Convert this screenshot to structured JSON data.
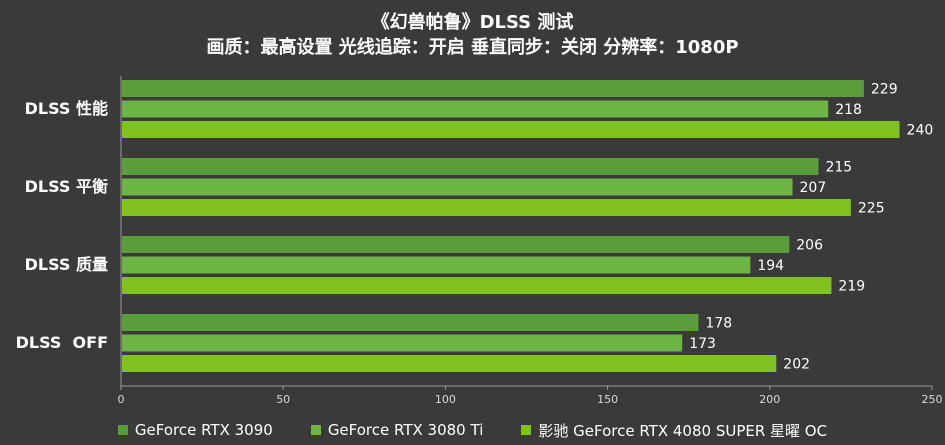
{
  "chart_data": {
    "type": "bar",
    "orientation": "horizontal",
    "title": "《幻兽帕鲁》DLSS 测试",
    "subtitle": "画质：最高设置 光线追踪：开启 垂直同步：关闭 分辨率：1080P",
    "categories": [
      "DLSS 性能",
      "DLSS 平衡",
      "DLSS 质量",
      "DLSS  OFF"
    ],
    "series": [
      {
        "name": "GeForce RTX 3090",
        "values": [
          229,
          215,
          206,
          178
        ],
        "color": "#5a9e3c"
      },
      {
        "name": "GeForce RTX 3080 Ti",
        "values": [
          218,
          207,
          194,
          173
        ],
        "color": "#6cb443"
      },
      {
        "name": "影驰 GeForce RTX 4080 SUPER 星曜 OC",
        "values": [
          240,
          225,
          219,
          202
        ],
        "color": "#7fc21f"
      }
    ],
    "xlim": [
      0,
      250
    ],
    "xticks": [
      0,
      50,
      100,
      150,
      200,
      250
    ],
    "grid": false,
    "legend_position": "bottom"
  },
  "colors": {
    "background": "#3a3a3a",
    "axis": "#9a9a9a",
    "text": "#ffffff"
  }
}
